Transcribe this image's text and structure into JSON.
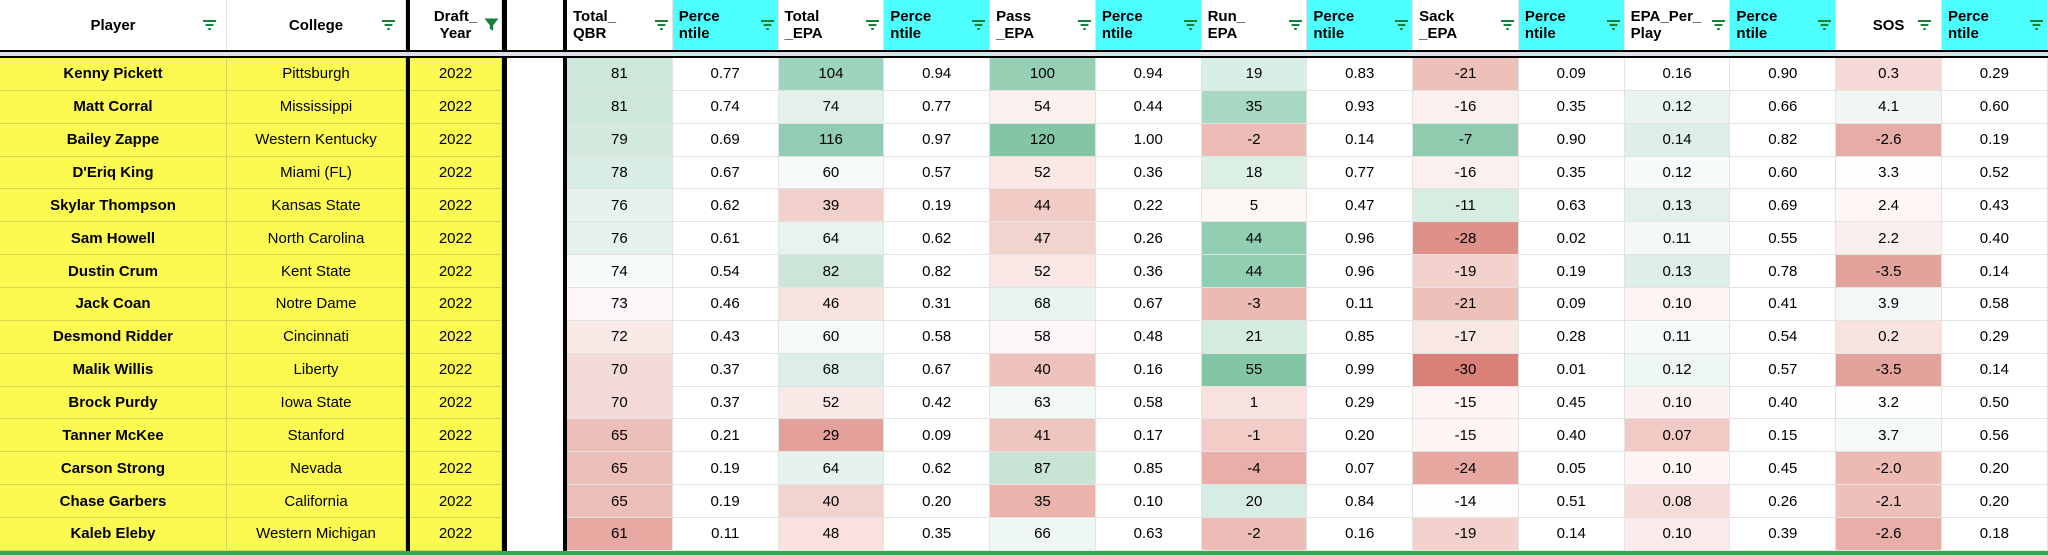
{
  "app": {
    "title": "QB draft prospects filtered spreadsheet"
  },
  "colors": {
    "row_label_bg": "#fcf951",
    "percentile_header_bg": "#4dffff",
    "plain_header_bg": "#ffffff",
    "filter_icon_green": "#188038",
    "thick_border": "#000000",
    "grid_line": "#e3e3e3",
    "bottom_border_green": "#34a853",
    "scale_max_green": "#57bb8a",
    "scale_min_red": "#e67c73"
  },
  "table": {
    "columns": [
      {
        "id": "player",
        "label": "Player",
        "header_bg": "#ffffff",
        "icon": "filter-lines"
      },
      {
        "id": "college",
        "label": "College",
        "header_bg": "#ffffff",
        "icon": "filter-lines"
      },
      {
        "id": "draft_year",
        "label": "Draft_\nYear",
        "header_bg": "#ffffff",
        "icon": "filter-funnel-active"
      },
      {
        "id": "total_qbr",
        "label": "Total_\nQBR",
        "header_bg": "#ffffff",
        "icon": "filter-lines"
      },
      {
        "id": "total_qbr_percentile",
        "label": "Perce\nntile",
        "header_bg": "#4dffff",
        "icon": "filter-lines"
      },
      {
        "id": "total_epa",
        "label": "Total\n_EPA",
        "header_bg": "#ffffff",
        "icon": "filter-lines"
      },
      {
        "id": "total_epa_percentile",
        "label": "Perce\nntile",
        "header_bg": "#4dffff",
        "icon": "filter-lines"
      },
      {
        "id": "pass_epa",
        "label": "Pass\n_EPA",
        "header_bg": "#ffffff",
        "icon": "filter-lines"
      },
      {
        "id": "pass_epa_percentile",
        "label": "Perce\nntile",
        "header_bg": "#4dffff",
        "icon": "filter-lines"
      },
      {
        "id": "run_epa",
        "label": "Run_\nEPA",
        "header_bg": "#ffffff",
        "icon": "filter-lines"
      },
      {
        "id": "run_epa_percentile",
        "label": "Perce\nntile",
        "header_bg": "#4dffff",
        "icon": "filter-lines"
      },
      {
        "id": "sack_epa",
        "label": "Sack\n_EPA",
        "header_bg": "#ffffff",
        "icon": "filter-lines"
      },
      {
        "id": "sack_epa_percentile",
        "label": "Perce\nntile",
        "header_bg": "#4dffff",
        "icon": "filter-lines"
      },
      {
        "id": "epa_per_play",
        "label": "EPA_Per_\nPlay",
        "header_bg": "#ffffff",
        "icon": "filter-lines"
      },
      {
        "id": "epa_per_play_percentile",
        "label": "Perce\nntile",
        "header_bg": "#4dffff",
        "icon": "filter-lines"
      },
      {
        "id": "sos",
        "label": "SOS",
        "header_bg": "#ffffff",
        "icon": "filter-lines"
      },
      {
        "id": "sos_percentile",
        "label": "Perce\nntile",
        "header_bg": "#4dffff",
        "icon": "filter-lines"
      }
    ],
    "rows": [
      {
        "player": "Kenny Pickett",
        "college": "Pittsburgh",
        "draft_year": "2022",
        "values": [
          "81",
          "0.77",
          "104",
          "0.94",
          "100",
          "0.94",
          "19",
          "0.83",
          "-21",
          "0.09",
          "0.16",
          "0.90",
          "0.3",
          "0.29"
        ],
        "bg": [
          "#cde7da",
          "#ffffff",
          "#9fd4bc",
          "#ffffff",
          "#96cfb4",
          "#ffffff",
          "#d9eee4",
          "#ffffff",
          "#eec0ba",
          "#ffffff",
          "#ffffff",
          "#ffffff",
          "#f5dad7",
          "#ffffff"
        ]
      },
      {
        "player": "Matt Corral",
        "college": "Mississippi",
        "draft_year": "2022",
        "values": [
          "81",
          "0.74",
          "74",
          "0.77",
          "54",
          "0.44",
          "35",
          "0.93",
          "-16",
          "0.35",
          "0.12",
          "0.66",
          "4.1",
          "0.60"
        ],
        "bg": [
          "#cde7da",
          "#ffffff",
          "#e3f1ea",
          "#ffffff",
          "#fcf0ee",
          "#ffffff",
          "#a9d8c2",
          "#ffffff",
          "#fcf0ee",
          "#ffffff",
          "#e9f4ee",
          "#ffffff",
          "#f0f7f4",
          "#ffffff"
        ]
      },
      {
        "player": "Bailey Zappe",
        "college": "Western Kentucky",
        "draft_year": "2022",
        "values": [
          "79",
          "0.69",
          "116",
          "0.97",
          "120",
          "1.00",
          "-2",
          "0.14",
          "-7",
          "0.90",
          "0.14",
          "0.82",
          "-2.6",
          "0.19"
        ],
        "bg": [
          "#d5eadf",
          "#ffffff",
          "#92ccb2",
          "#ffffff",
          "#84c5a6",
          "#ffffff",
          "#eebcb6",
          "#ffffff",
          "#90cbaf",
          "#ffffff",
          "#ddefe6",
          "#ffffff",
          "#e6aca6",
          "#ffffff"
        ]
      },
      {
        "player": "D'Eriq King",
        "college": "Miami (FL)",
        "draft_year": "2022",
        "values": [
          "78",
          "0.67",
          "60",
          "0.57",
          "52",
          "0.36",
          "18",
          "0.77",
          "-16",
          "0.35",
          "0.12",
          "0.60",
          "3.3",
          "0.52"
        ],
        "bg": [
          "#dbeee5",
          "#ffffff",
          "#f6fbf8",
          "#ffffff",
          "#f9e8e5",
          "#ffffff",
          "#dbefe5",
          "#ffffff",
          "#fcf0ee",
          "#ffffff",
          "#f6faf8",
          "#ffffff",
          "#fefefe",
          "#ffffff"
        ]
      },
      {
        "player": "Skylar Thompson",
        "college": "Kansas State",
        "draft_year": "2022",
        "values": [
          "76",
          "0.62",
          "39",
          "0.19",
          "44",
          "0.22",
          "5",
          "0.47",
          "-11",
          "0.63",
          "0.13",
          "0.69",
          "2.4",
          "0.43"
        ],
        "bg": [
          "#e6f3ec",
          "#ffffff",
          "#f2d0cc",
          "#ffffff",
          "#f1cbc6",
          "#ffffff",
          "#fcf6f5",
          "#ffffff",
          "#d8ede2",
          "#ffffff",
          "#e3f1ea",
          "#ffffff",
          "#fdf6f5",
          "#ffffff"
        ]
      },
      {
        "player": "Sam Howell",
        "college": "North Carolina",
        "draft_year": "2022",
        "values": [
          "76",
          "0.61",
          "64",
          "0.62",
          "47",
          "0.26",
          "44",
          "0.96",
          "-28",
          "0.02",
          "0.11",
          "0.55",
          "2.2",
          "0.40"
        ],
        "bg": [
          "#e6f3ec",
          "#ffffff",
          "#e7f3ec",
          "#ffffff",
          "#f3d3ce",
          "#ffffff",
          "#92ceb2",
          "#ffffff",
          "#dd9189",
          "#ffffff",
          "#f3f9f6",
          "#ffffff",
          "#fbefed",
          "#ffffff"
        ]
      },
      {
        "player": "Dustin Crum",
        "college": "Kent State",
        "draft_year": "2022",
        "values": [
          "74",
          "0.54",
          "82",
          "0.82",
          "52",
          "0.36",
          "44",
          "0.96",
          "-19",
          "0.19",
          "0.13",
          "0.78",
          "-3.5",
          "0.14"
        ],
        "bg": [
          "#f7fbf9",
          "#ffffff",
          "#cbe6d8",
          "#ffffff",
          "#f9e8e5",
          "#ffffff",
          "#92ceb2",
          "#ffffff",
          "#f3d2cd",
          "#ffffff",
          "#ddefe6",
          "#ffffff",
          "#e2a39c",
          "#ffffff"
        ]
      },
      {
        "player": "Jack Coan",
        "college": "Notre Dame",
        "draft_year": "2022",
        "values": [
          "73",
          "0.46",
          "46",
          "0.31",
          "68",
          "0.67",
          "-3",
          "0.11",
          "-21",
          "0.09",
          "0.10",
          "0.41",
          "3.9",
          "0.58"
        ],
        "bg": [
          "#fcf7f6",
          "#ffffff",
          "#f9e3e0",
          "#ffffff",
          "#e8f4ed",
          "#ffffff",
          "#edb9b3",
          "#ffffff",
          "#eec0ba",
          "#ffffff",
          "#fdf3f2",
          "#ffffff",
          "#f2f9f6",
          "#ffffff"
        ]
      },
      {
        "player": "Desmond Ridder",
        "college": "Cincinnati",
        "draft_year": "2022",
        "values": [
          "72",
          "0.43",
          "60",
          "0.58",
          "58",
          "0.48",
          "21",
          "0.85",
          "-17",
          "0.28",
          "0.11",
          "0.54",
          "0.2",
          "0.29"
        ],
        "bg": [
          "#f9e9e7",
          "#ffffff",
          "#f4faf7",
          "#ffffff",
          "#fdf8f7",
          "#ffffff",
          "#d4ebdf",
          "#ffffff",
          "#f9e7e4",
          "#ffffff",
          "#f5faf8",
          "#ffffff",
          "#f8e3e0",
          "#ffffff"
        ]
      },
      {
        "player": "Malik Willis",
        "college": "Liberty",
        "draft_year": "2022",
        "values": [
          "70",
          "0.37",
          "68",
          "0.67",
          "40",
          "0.16",
          "55",
          "0.99",
          "-30",
          "0.01",
          "0.12",
          "0.57",
          "-3.5",
          "0.14"
        ],
        "bg": [
          "#f5dbd8",
          "#ffffff",
          "#ddeee6",
          "#ffffff",
          "#eec2bc",
          "#ffffff",
          "#83c6a5",
          "#ffffff",
          "#d98179",
          "#ffffff",
          "#edf6f1",
          "#ffffff",
          "#e2a39c",
          "#ffffff"
        ]
      },
      {
        "player": "Brock Purdy",
        "college": "Iowa State",
        "draft_year": "2022",
        "values": [
          "70",
          "0.37",
          "52",
          "0.42",
          "63",
          "0.58",
          "1",
          "0.29",
          "-15",
          "0.45",
          "0.10",
          "0.40",
          "3.2",
          "0.50"
        ],
        "bg": [
          "#f5dbd8",
          "#ffffff",
          "#faeae7",
          "#ffffff",
          "#f2f9f5",
          "#ffffff",
          "#f8e2df",
          "#ffffff",
          "#fdf4f3",
          "#ffffff",
          "#fdf2f1",
          "#ffffff",
          "#fefefe",
          "#ffffff"
        ]
      },
      {
        "player": "Tanner McKee",
        "college": "Stanford",
        "draft_year": "2022",
        "values": [
          "65",
          "0.21",
          "29",
          "0.09",
          "41",
          "0.17",
          "-1",
          "0.20",
          "-15",
          "0.40",
          "0.07",
          "0.15",
          "3.7",
          "0.56"
        ],
        "bg": [
          "#edbfb9",
          "#ffffff",
          "#e4a09a",
          "#ffffff",
          "#efc5bf",
          "#ffffff",
          "#f2cdc8",
          "#ffffff",
          "#fdf4f3",
          "#ffffff",
          "#f1cac5",
          "#ffffff",
          "#f4faf7",
          "#ffffff"
        ]
      },
      {
        "player": "Carson Strong",
        "college": "Nevada",
        "draft_year": "2022",
        "values": [
          "65",
          "0.19",
          "64",
          "0.62",
          "87",
          "0.85",
          "-4",
          "0.07",
          "-24",
          "0.05",
          "0.10",
          "0.45",
          "-2.0",
          "0.20"
        ],
        "bg": [
          "#edbfb9",
          "#ffffff",
          "#e6f2eb",
          "#ffffff",
          "#c7e4d5",
          "#ffffff",
          "#e8aea7",
          "#ffffff",
          "#e7a8a1",
          "#ffffff",
          "#fdf5f4",
          "#ffffff",
          "#ecb9b3",
          "#ffffff"
        ]
      },
      {
        "player": "Chase Garbers",
        "college": "California",
        "draft_year": "2022",
        "values": [
          "65",
          "0.19",
          "40",
          "0.20",
          "35",
          "0.10",
          "20",
          "0.84",
          "-14",
          "0.51",
          "0.08",
          "0.26",
          "-2.1",
          "0.20"
        ],
        "bg": [
          "#edbfb9",
          "#ffffff",
          "#f3d3cf",
          "#ffffff",
          "#eab4ad",
          "#ffffff",
          "#d7ece2",
          "#ffffff",
          "#fefcfc",
          "#ffffff",
          "#f7ddd9",
          "#ffffff",
          "#eec0bb",
          "#ffffff"
        ]
      },
      {
        "player": "Kaleb Eleby",
        "college": "Western Michigan",
        "draft_year": "2022",
        "values": [
          "61",
          "0.11",
          "48",
          "0.35",
          "66",
          "0.63",
          "-2",
          "0.16",
          "-19",
          "0.14",
          "0.10",
          "0.39",
          "-2.6",
          "0.18"
        ],
        "bg": [
          "#e8a9a2",
          "#ffffff",
          "#f8e1de",
          "#ffffff",
          "#eef7f2",
          "#ffffff",
          "#eebcb6",
          "#ffffff",
          "#f3d2cd",
          "#ffffff",
          "#fbeceb",
          "#ffffff",
          "#e8aea8",
          "#ffffff"
        ]
      }
    ]
  }
}
